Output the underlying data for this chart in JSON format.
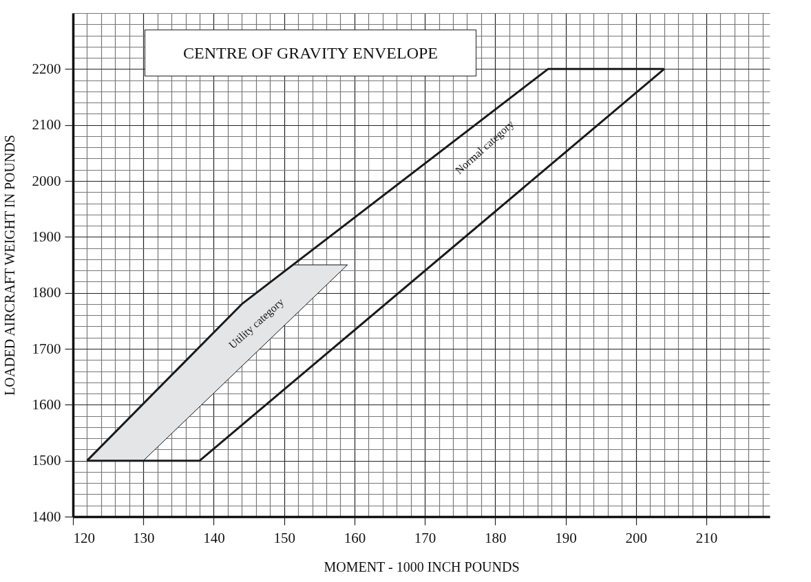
{
  "chart_data": {
    "type": "line",
    "title": "CENTRE OF GRAVITY ENVELOPE",
    "xlabel": "MOMENT - 1000 INCH POUNDS",
    "ylabel": "LOADED AIRCRAFT WEIGHT IN POUNDS",
    "series": [
      {
        "name": "Normal category",
        "color": "#1a1a1a",
        "x": [
          122,
          144,
          187.5,
          204
        ],
        "values": [
          1500,
          1780,
          2200,
          2200
        ]
      },
      {
        "color": "#1a1a1a",
        "x": [
          122,
          138,
          204
        ],
        "values": [
          1500,
          1500,
          2200
        ]
      },
      {
        "name": "Utility category",
        "type": "area",
        "color": "#e4e5e7",
        "x": [
          122,
          130,
          159,
          151.2,
          144
        ],
        "values": [
          1500,
          1500,
          1850,
          1850,
          1780
        ]
      }
    ],
    "xlim": [
      120,
      219
    ],
    "ylim": [
      1400,
      2300
    ],
    "xticks": [
      120,
      {
        "value": 122,
        "label": null
      },
      {
        "value": 124,
        "label": null
      },
      {
        "value": 126,
        "label": null
      },
      {
        "value": 128,
        "label": null
      },
      130,
      {
        "value": 132,
        "label": null
      },
      {
        "value": 134,
        "label": null
      },
      {
        "value": 136,
        "label": null
      },
      {
        "value": 138,
        "label": null
      },
      140,
      {
        "value": 142,
        "label": null
      },
      {
        "value": 144,
        "label": null
      },
      {
        "value": 146,
        "label": null
      },
      {
        "value": 148,
        "label": null
      },
      150,
      {
        "value": 152,
        "label": null
      },
      {
        "value": 154,
        "label": null
      },
      {
        "value": 156,
        "label": null
      },
      {
        "value": 158,
        "label": null
      },
      160,
      {
        "value": 162,
        "label": null
      },
      {
        "value": 164,
        "label": null
      },
      {
        "value": 166,
        "label": null
      },
      {
        "value": 168,
        "label": null
      },
      170,
      {
        "value": 172,
        "label": null
      },
      {
        "value": 174,
        "label": null
      },
      {
        "value": 176,
        "label": null
      },
      {
        "value": 178,
        "label": null
      },
      180,
      {
        "value": 182,
        "label": null
      },
      {
        "value": 184,
        "label": null
      },
      {
        "value": 186,
        "label": null
      },
      {
        "value": 188,
        "label": null
      },
      190,
      {
        "value": 192,
        "label": null
      },
      {
        "value": 194,
        "label": null
      },
      {
        "value": 196,
        "label": null
      },
      {
        "value": 198,
        "label": null
      },
      200,
      {
        "value": 202,
        "label": null
      },
      {
        "value": 204,
        "label": null
      },
      {
        "value": 206,
        "label": null
      },
      {
        "value": 208,
        "label": null
      },
      210,
      {
        "value": 212,
        "label": null
      },
      {
        "value": 214,
        "label": null
      },
      {
        "value": 216,
        "label": null
      },
      {
        "value": 218,
        "label": null
      }
    ],
    "yticks": [
      1400,
      {
        "value": 1420,
        "label": null
      },
      {
        "value": 1440,
        "label": null
      },
      {
        "value": 1460,
        "label": null
      },
      {
        "value": 1480,
        "label": null
      },
      1500,
      {
        "value": 1520,
        "label": null
      },
      {
        "value": 1540,
        "label": null
      },
      {
        "value": 1560,
        "label": null
      },
      {
        "value": 1580,
        "label": null
      },
      1600,
      {
        "value": 1620,
        "label": null
      },
      {
        "value": 1640,
        "label": null
      },
      {
        "value": 1660,
        "label": null
      },
      {
        "value": 1680,
        "label": null
      },
      1700,
      {
        "value": 1720,
        "label": null
      },
      {
        "value": 1740,
        "label": null
      },
      {
        "value": 1760,
        "label": null
      },
      {
        "value": 1780,
        "label": null
      },
      1800,
      {
        "value": 1820,
        "label": null
      },
      {
        "value": 1840,
        "label": null
      },
      {
        "value": 1860,
        "label": null
      },
      {
        "value": 1880,
        "label": null
      },
      1900,
      {
        "value": 1920,
        "label": null
      },
      {
        "value": 1940,
        "label": null
      },
      {
        "value": 1960,
        "label": null
      },
      {
        "value": 1980,
        "label": null
      },
      2000,
      {
        "value": 2020,
        "label": null
      },
      {
        "value": 2040,
        "label": null
      },
      {
        "value": 2060,
        "label": null
      },
      {
        "value": 2080,
        "label": null
      },
      2100,
      {
        "value": 2120,
        "label": null
      },
      {
        "value": 2140,
        "label": null
      },
      {
        "value": 2160,
        "label": null
      },
      {
        "value": 2180,
        "label": null
      },
      2200,
      {
        "value": 2220,
        "label": null
      },
      {
        "value": 2240,
        "label": null
      },
      {
        "value": 2260,
        "label": null
      },
      {
        "value": 2280,
        "label": null
      },
      {
        "value": 2300,
        "label": null
      }
    ],
    "grid": true
  }
}
